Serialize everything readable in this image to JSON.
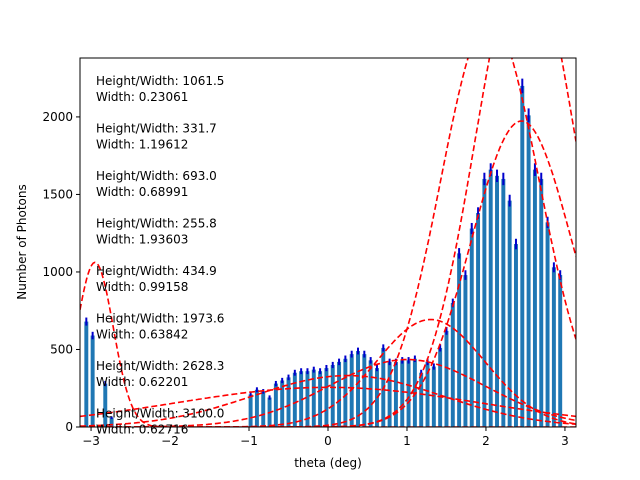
{
  "chart_data": {
    "type": "bar",
    "xlabel": "theta (deg)",
    "ylabel": "Number of Photons",
    "xlim": [
      -3.14,
      3.14
    ],
    "ylim": [
      0,
      2380
    ],
    "x_ticks": [
      -3,
      -2,
      -1,
      0,
      1,
      2,
      3
    ],
    "y_ticks": [
      0,
      500,
      1000,
      1500,
      2000
    ],
    "grid": false,
    "colors": {
      "bars": "#1f77b4",
      "error_bars": "#0000cc",
      "fits": "#ff0000"
    },
    "bars": {
      "x": [
        -3.06,
        -2.98,
        -2.9,
        -2.82,
        -2.74,
        -2.66,
        -2.58,
        -2.5,
        -2.42,
        -2.34,
        -2.26,
        -2.18,
        -2.1,
        -2.02,
        -1.94,
        -1.86,
        -1.78,
        -1.7,
        -1.62,
        -1.54,
        -1.46,
        -1.38,
        -1.3,
        -1.22,
        -1.14,
        -1.06,
        -0.98,
        -0.9,
        -0.82,
        -0.74,
        -0.66,
        -0.58,
        -0.5,
        -0.42,
        -0.34,
        -0.26,
        -0.18,
        -0.1,
        -0.02,
        0.06,
        0.14,
        0.22,
        0.3,
        0.38,
        0.46,
        0.54,
        0.62,
        0.7,
        0.78,
        0.86,
        0.94,
        1.02,
        1.1,
        1.18,
        1.26,
        1.34,
        1.42,
        1.5,
        1.58,
        1.66,
        1.74,
        1.82,
        1.9,
        1.98,
        2.06,
        2.14,
        2.22,
        2.3,
        2.38,
        2.46,
        2.54,
        2.62,
        2.7,
        2.78,
        2.86,
        2.94,
        3.02,
        3.1
      ],
      "values": [
        680,
        590,
        0,
        280,
        60,
        0,
        0,
        0,
        0,
        0,
        0,
        0,
        0,
        0,
        0,
        0,
        0,
        0,
        0,
        0,
        0,
        0,
        0,
        0,
        0,
        0,
        210,
        240,
        230,
        190,
        280,
        300,
        320,
        350,
        360,
        360,
        370,
        360,
        380,
        400,
        420,
        440,
        470,
        490,
        470,
        430,
        380,
        510,
        420,
        420,
        430,
        430,
        440,
        350,
        420,
        390,
        510,
        620,
        800,
        1120,
        980,
        1280,
        1380,
        1600,
        1660,
        1620,
        1600,
        1460,
        1180,
        2200,
        2010,
        1660,
        1600,
        1320,
        1030,
        980,
        0,
        0
      ],
      "errors": [
        26,
        24,
        0,
        17,
        8,
        0,
        0,
        0,
        0,
        0,
        0,
        0,
        0,
        0,
        0,
        0,
        0,
        0,
        0,
        0,
        0,
        0,
        0,
        0,
        0,
        0,
        15,
        16,
        15,
        14,
        17,
        17,
        18,
        19,
        19,
        19,
        19,
        19,
        20,
        20,
        21,
        21,
        22,
        22,
        22,
        21,
        20,
        23,
        21,
        21,
        21,
        21,
        21,
        19,
        21,
        20,
        23,
        25,
        28,
        34,
        31,
        36,
        37,
        40,
        41,
        40,
        40,
        38,
        34,
        47,
        45,
        41,
        40,
        36,
        32,
        31,
        0,
        0
      ]
    },
    "fit_curves": [
      {
        "amplitude": 1061.5,
        "center": -2.95,
        "width": 0.23061
      },
      {
        "amplitude": 331.7,
        "center": 0.25,
        "width": 1.19612
      },
      {
        "amplitude": 693.0,
        "center": 1.3,
        "width": 0.68991
      },
      {
        "amplitude": 255.8,
        "center": 0.0,
        "width": 1.93603
      },
      {
        "amplitude": 434.9,
        "center": 1.0,
        "width": 0.99158
      },
      {
        "amplitude": 1973.6,
        "center": 2.45,
        "width": 0.63842
      },
      {
        "amplitude": 2628.3,
        "center": 2.05,
        "width": 0.62201
      },
      {
        "amplitude": 3100.0,
        "center": 2.5,
        "width": 0.62716
      }
    ],
    "annotations": [
      {
        "line1": "Height/Width: 1061.5",
        "line2": "Width: 0.23061"
      },
      {
        "line1": "Height/Width: 331.7",
        "line2": "Width: 1.19612"
      },
      {
        "line1": "Height/Width: 693.0",
        "line2": "Width: 0.68991"
      },
      {
        "line1": "Height/Width: 255.8",
        "line2": "Width: 1.93603"
      },
      {
        "line1": "Height/Width: 434.9",
        "line2": "Width: 0.99158"
      },
      {
        "line1": "Height/Width: 1973.6",
        "line2": "Width: 0.63842"
      },
      {
        "line1": "Height/Width: 2628.3",
        "line2": "Width: 0.62201"
      },
      {
        "line1": "Height/Width: 3100.0",
        "line2": "Width: 0.62716"
      }
    ]
  }
}
